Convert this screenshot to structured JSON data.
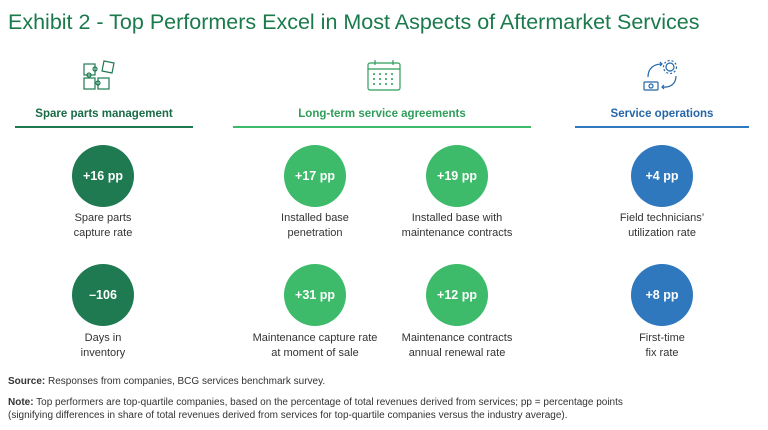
{
  "title": "Exhibit 2 - Top Performers Excel in Most Aspects of Aftermarket Services",
  "colors": {
    "title": "#1a7a4c",
    "dark_green": "#1f7a52",
    "green": "#3dbb6a",
    "blue": "#2f78bd",
    "heading_dark_green": "#1a6b48",
    "heading_green": "#2e9e5a",
    "heading_blue": "#2466a8"
  },
  "sections": [
    {
      "heading": "Spare parts management",
      "icon": "puzzle-pieces-icon",
      "metrics": [
        {
          "value": "+16 pp",
          "label_lines": [
            "Spare parts",
            "capture rate"
          ]
        },
        {
          "value": "–106",
          "label_lines": [
            "Days in",
            "inventory"
          ]
        }
      ]
    },
    {
      "heading": "Long-term service agreements",
      "icon": "calendar-icon",
      "metrics": [
        {
          "value": "+17 pp",
          "label_lines": [
            "Installed base",
            "penetration"
          ]
        },
        {
          "value": "+19 pp",
          "label_lines": [
            "Installed base with",
            "maintenance contracts"
          ]
        },
        {
          "value": "+31 pp",
          "label_lines": [
            "Maintenance capture rate",
            "at moment of sale"
          ]
        },
        {
          "value": "+12 pp",
          "label_lines": [
            "Maintenance contracts",
            "annual renewal rate"
          ]
        }
      ]
    },
    {
      "heading": "Service operations",
      "icon": "gear-cycle-icon",
      "metrics": [
        {
          "value": "+4 pp",
          "label_lines": [
            "Field technicians’",
            "utilization rate"
          ]
        },
        {
          "value": "+8 pp",
          "label_lines": [
            "First-time",
            "fix rate"
          ]
        }
      ]
    }
  ],
  "source": {
    "label": "Source:",
    "text": " Responses from companies, BCG services benchmark survey."
  },
  "note": {
    "label": "Note:",
    "line1": " Top performers are top-quartile companies, based on the percentage of total revenues derived from services; pp = percentage points",
    "line2": "(signifying differences in share of total revenues derived from services for top-quartile companies versus the industry average)."
  }
}
